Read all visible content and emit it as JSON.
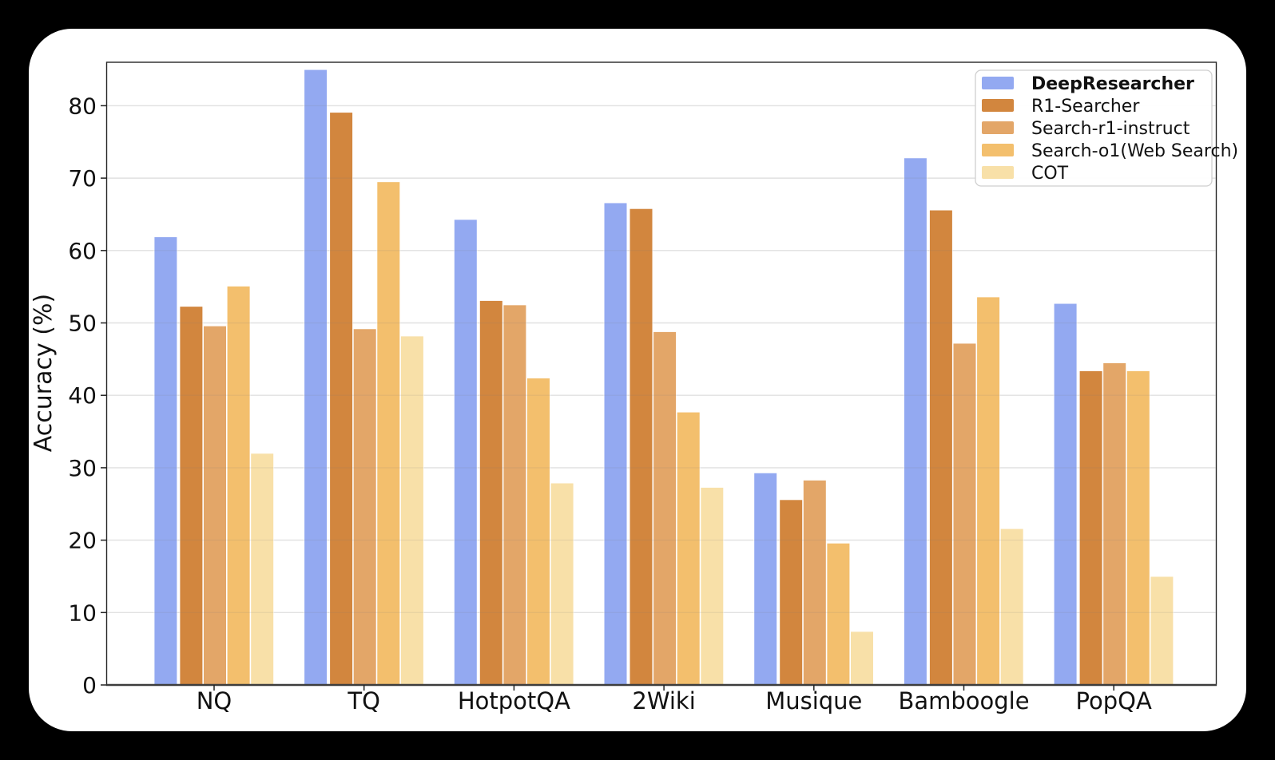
{
  "colors": {
    "page_background": "#000000",
    "card_background": "#ffffff",
    "plot_frame": "#262626",
    "axis_line": "#3d3d3d",
    "gridline": "#efefef",
    "gridline_overlay": "rgba(120,120,120,0.12)",
    "tick": "#222222",
    "legend_border": "#cfcfcf"
  },
  "chart_data": {
    "type": "bar",
    "title": "",
    "xlabel": "",
    "ylabel": "Accuracy (%)",
    "ylim": [
      0,
      86
    ],
    "yticks": [
      0,
      10,
      20,
      30,
      40,
      50,
      60,
      70,
      80
    ],
    "grid": "horizontal",
    "legend_position": "upper right",
    "categories": [
      "NQ",
      "TQ",
      "HotpotQA",
      "2Wiki",
      "Musique",
      "Bamboogle",
      "PopQA"
    ],
    "series": [
      {
        "name": "DeepResearcher",
        "color": "#93a9f1",
        "bold": true,
        "values": [
          61.9,
          85.0,
          64.3,
          66.6,
          29.3,
          72.8,
          52.7
        ]
      },
      {
        "name": "R1-Searcher",
        "color": "#d2863e",
        "bold": false,
        "values": [
          52.3,
          79.1,
          53.1,
          65.8,
          25.6,
          65.6,
          43.4
        ]
      },
      {
        "name": "Search-r1-instruct",
        "color": "#e3a668",
        "bold": false,
        "values": [
          49.6,
          49.2,
          52.5,
          48.8,
          28.3,
          47.2,
          44.5
        ]
      },
      {
        "name": "Search-o1(Web Search)",
        "color": "#f3bf6d",
        "bold": false,
        "values": [
          55.1,
          69.5,
          42.4,
          37.7,
          19.6,
          53.6,
          43.4
        ]
      },
      {
        "name": "COT",
        "color": "#f8e0a8",
        "bold": false,
        "values": [
          32.0,
          48.2,
          27.9,
          27.3,
          7.4,
          21.6,
          15.0
        ]
      }
    ]
  }
}
